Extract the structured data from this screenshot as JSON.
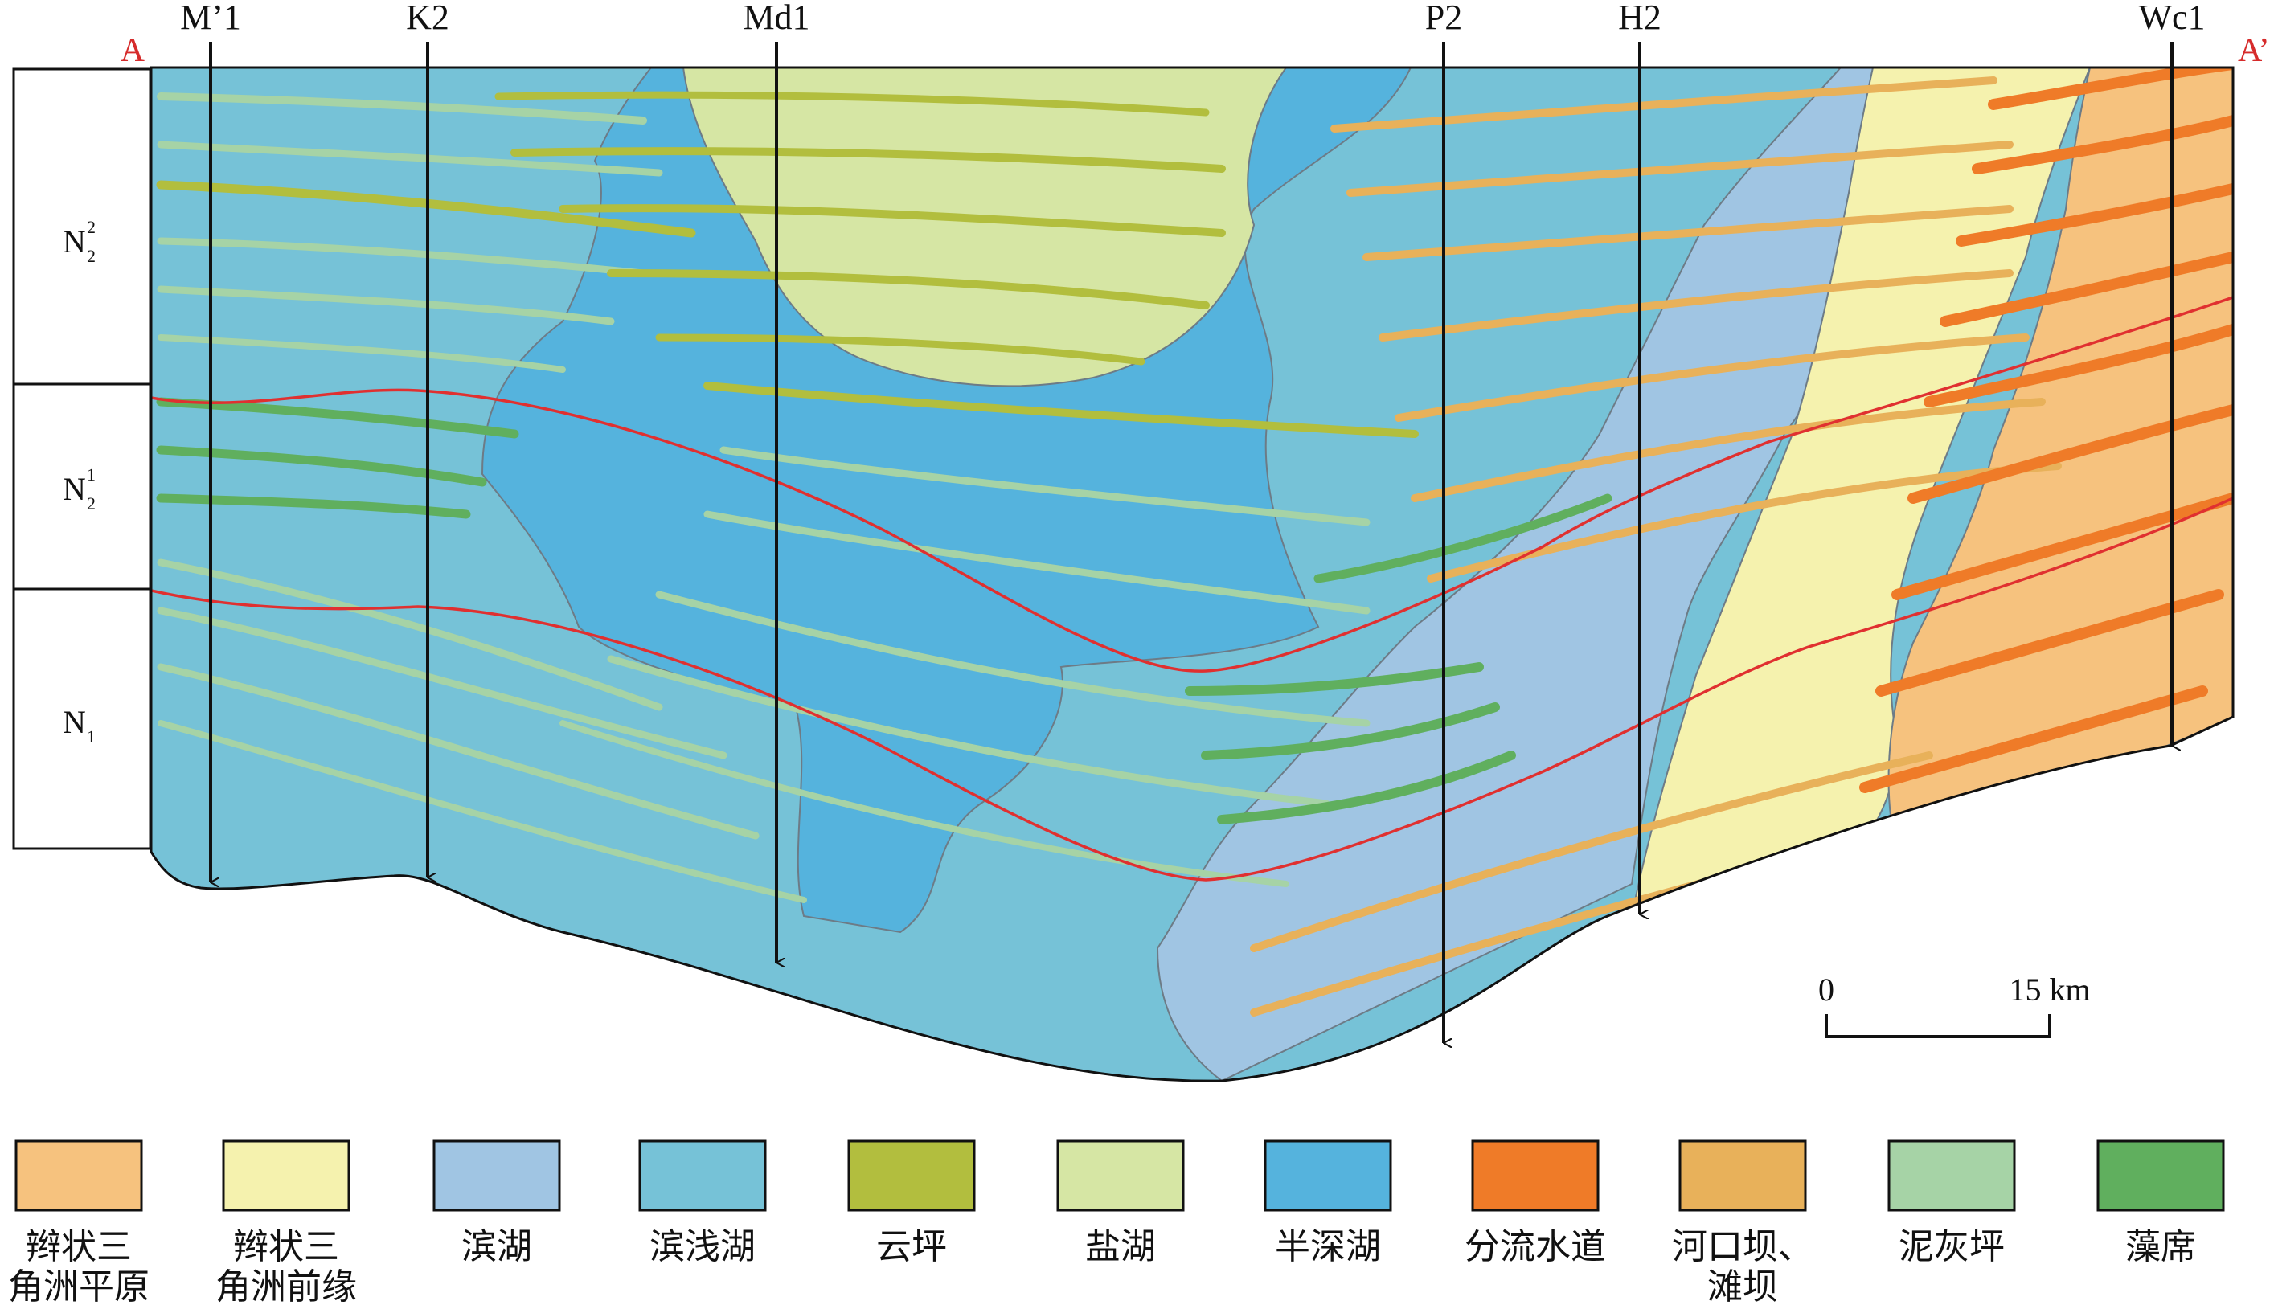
{
  "section": {
    "start_label": "A",
    "end_label": "A’"
  },
  "wells": [
    {
      "name": "M’1"
    },
    {
      "name": "K2"
    },
    {
      "name": "Md1"
    },
    {
      "name": "P2"
    },
    {
      "name": "H2"
    },
    {
      "name": "Wc1"
    }
  ],
  "strata": [
    {
      "symbol": "N",
      "sub": "2",
      "sup": "2"
    },
    {
      "symbol": "N",
      "sub": "2",
      "sup": "1"
    },
    {
      "symbol": "N",
      "sub": "1",
      "sup": ""
    }
  ],
  "scale_bar": {
    "start": "0",
    "end": "15 km"
  },
  "legend": [
    {
      "lines": [
        "辫状三",
        "角洲平原"
      ],
      "color": "#f6c27e"
    },
    {
      "lines": [
        "辫状三",
        "角洲前缘"
      ],
      "color": "#f5f2ae"
    },
    {
      "lines": [
        "滨湖"
      ],
      "color": "#a0c5e3"
    },
    {
      "lines": [
        "滨浅湖"
      ],
      "color": "#76c2d7"
    },
    {
      "lines": [
        "云坪"
      ],
      "color": "#b2be3e"
    },
    {
      "lines": [
        "盐湖"
      ],
      "color": "#d6e6a4"
    },
    {
      "lines": [
        "半深湖"
      ],
      "color": "#55b3dd"
    },
    {
      "lines": [
        "分流水道"
      ],
      "color": "#ef7b28"
    },
    {
      "lines": [
        "河口坝、",
        "滩坝"
      ],
      "color": "#e8b15a"
    },
    {
      "lines": [
        "泥灰坪"
      ],
      "color": "#a6d3a6"
    },
    {
      "lines": [
        "藻席"
      ],
      "color": "#60af5e"
    }
  ],
  "colors": {
    "boundary_line": "#e03030",
    "facies_edge": "#6d7b86"
  }
}
